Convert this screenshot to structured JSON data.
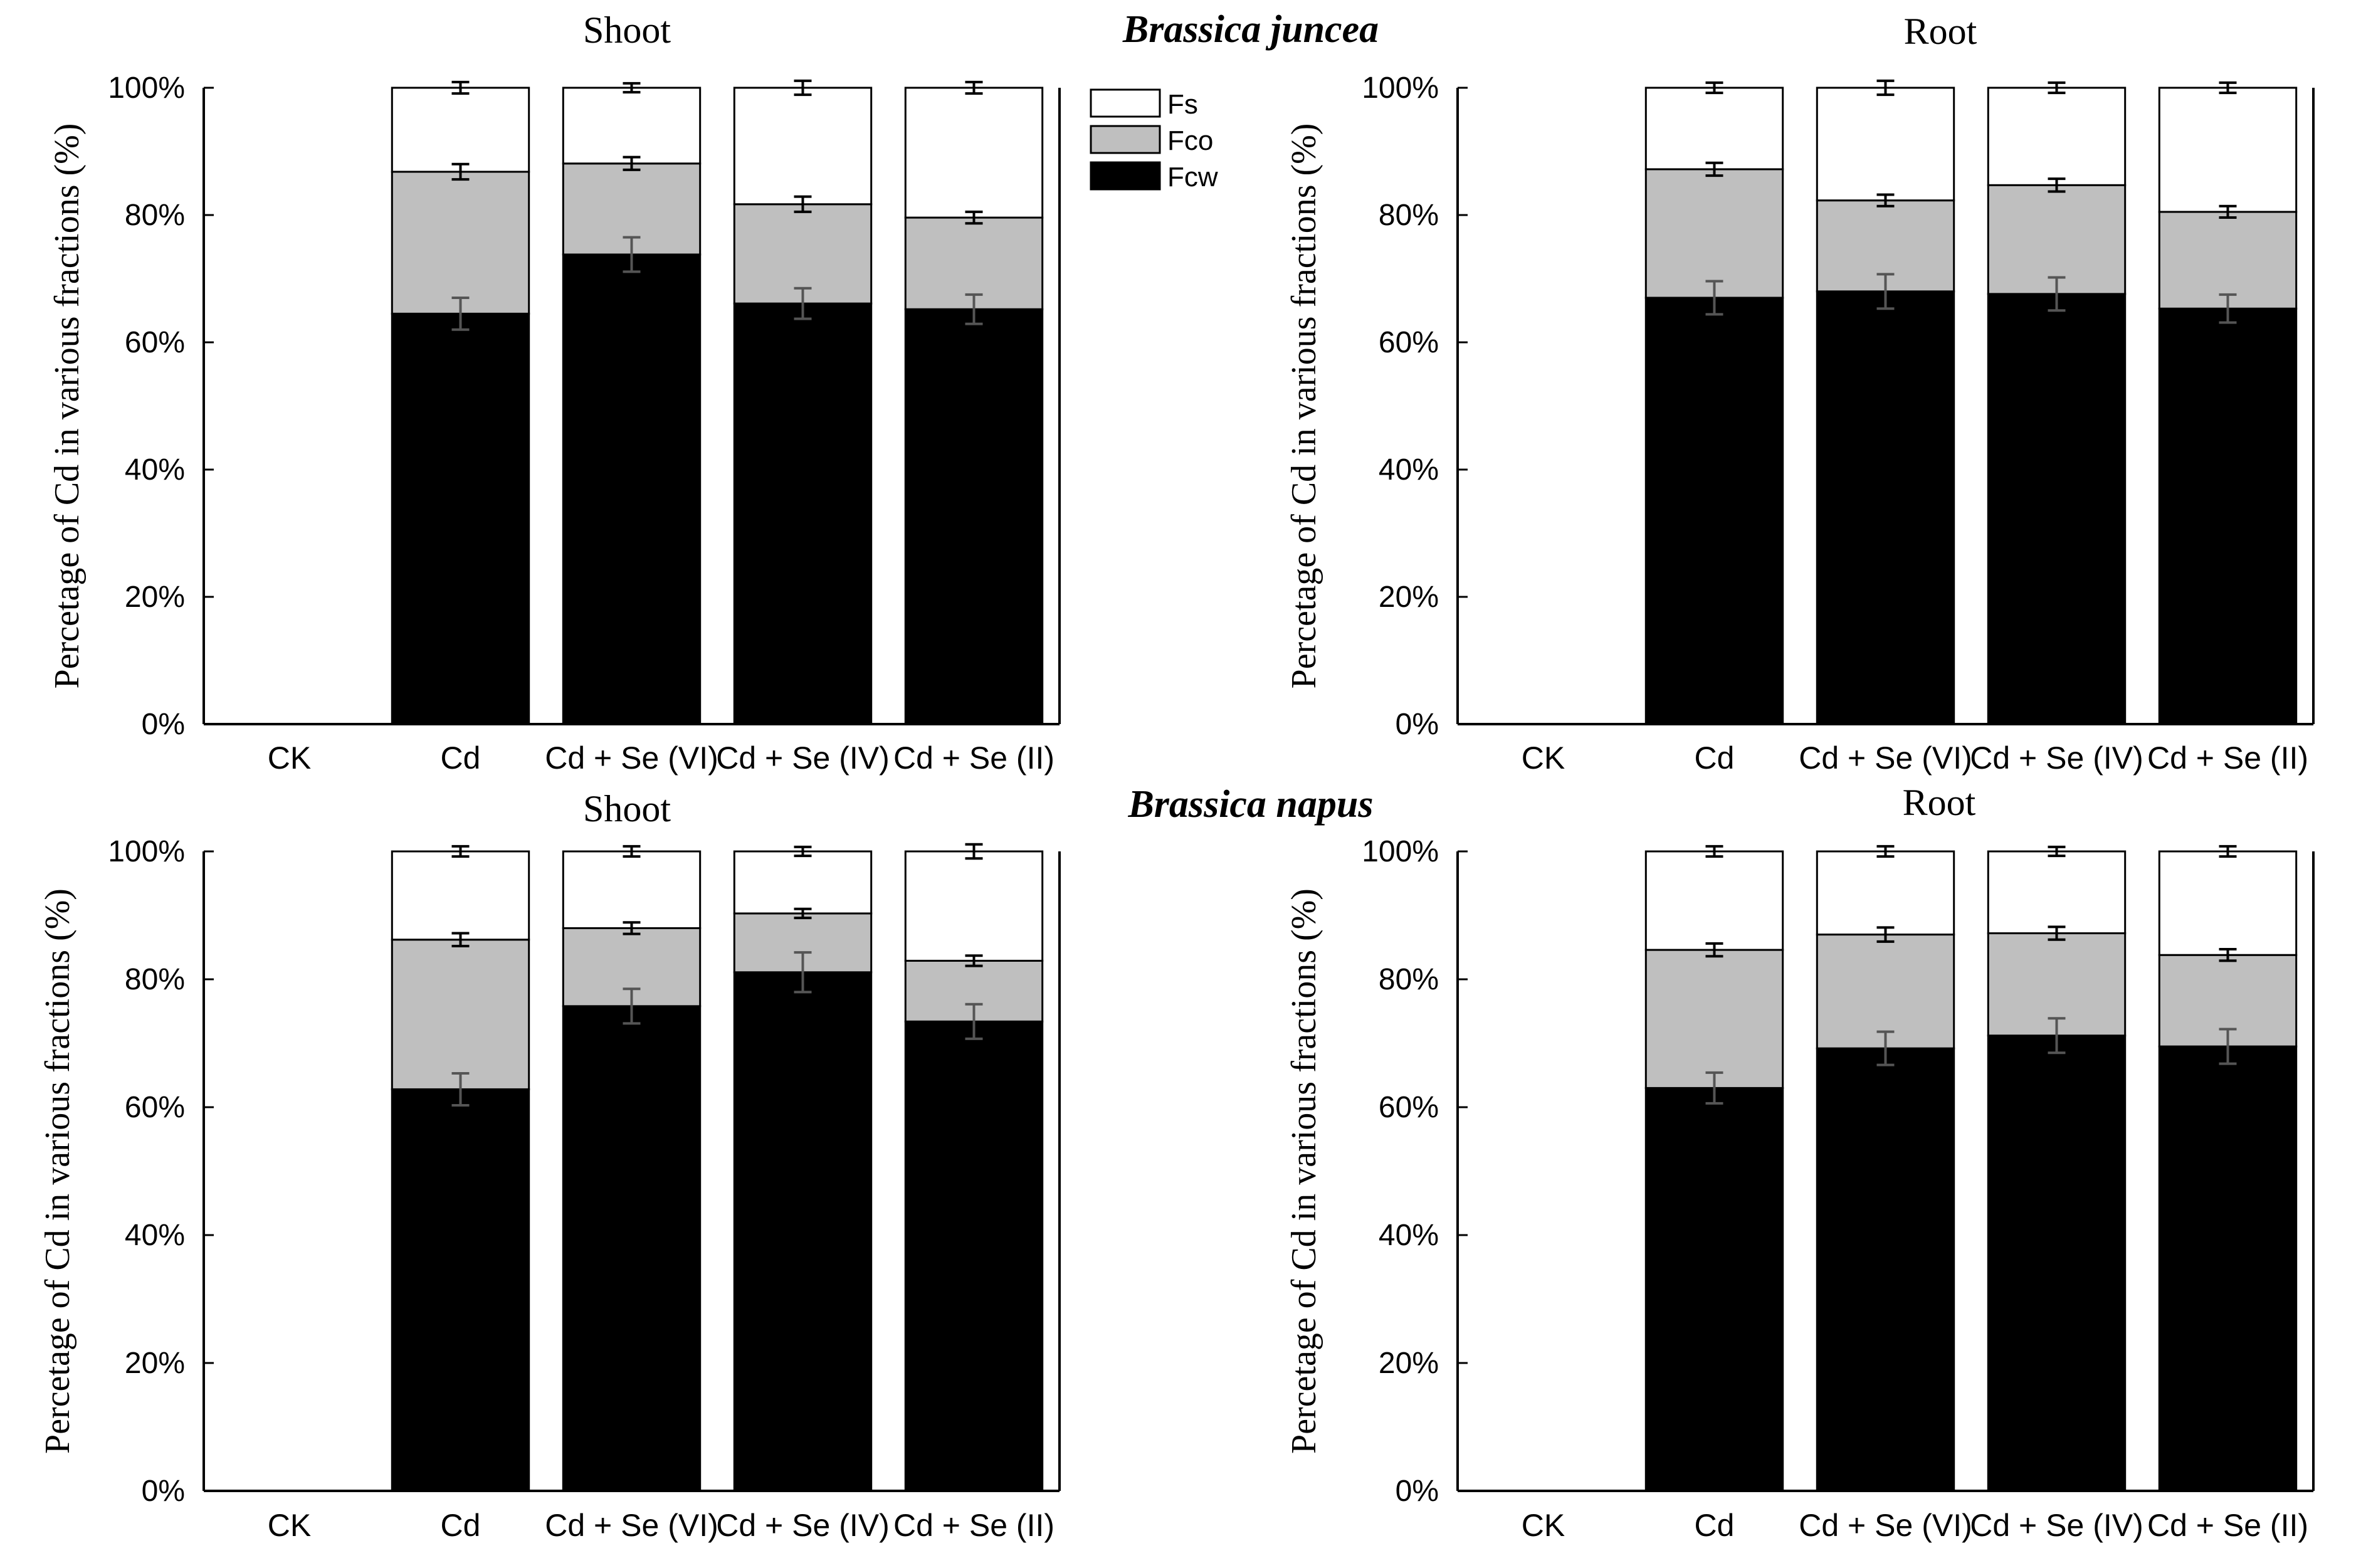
{
  "figure": {
    "species_top": "Brassica juncea",
    "species_bottom": "Brassica napus"
  },
  "legend": {
    "items": [
      {
        "name": "Fs",
        "color": "#ffffff"
      },
      {
        "name": "Fco",
        "color": "#bfbfbf"
      },
      {
        "name": "Fcw",
        "color": "#000000"
      }
    ]
  },
  "chart_data": [
    {
      "type": "bar",
      "stacked": true,
      "title": "Shoot",
      "species": "Brassica juncea",
      "xlabel": "",
      "ylabel": "Percetage of Cd in various fractions (%)",
      "ylim": [
        0,
        100
      ],
      "yticks": [
        "0%",
        "20%",
        "40%",
        "60%",
        "80%",
        "100%"
      ],
      "categories": [
        "CK",
        "Cd",
        "Cd + Se (VI)",
        "Cd + Se (IV)",
        "Cd + Se (II)"
      ],
      "series": [
        {
          "name": "Fcw",
          "values": [
            null,
            64.5,
            73.8,
            66.1,
            65.2
          ],
          "errors": [
            null,
            2.5,
            2.7,
            2.4,
            2.3
          ]
        },
        {
          "name": "Fco",
          "values": [
            null,
            22.3,
            14.3,
            15.6,
            14.4
          ],
          "errors": [
            null,
            1.2,
            1.0,
            1.2,
            0.9
          ]
        },
        {
          "name": "Fs",
          "values": [
            null,
            13.2,
            11.9,
            18.3,
            20.4
          ],
          "errors": [
            null,
            0.9,
            0.7,
            1.1,
            0.9
          ]
        }
      ]
    },
    {
      "type": "bar",
      "stacked": true,
      "title": "Root",
      "species": "Brassica juncea",
      "xlabel": "",
      "ylabel": "Percetage of Cd in various fractions (%)",
      "ylim": [
        0,
        100
      ],
      "yticks": [
        "0%",
        "20%",
        "40%",
        "60%",
        "80%",
        "100%"
      ],
      "categories": [
        "CK",
        "Cd",
        "Cd + Se (VI)",
        "Cd + Se (IV)",
        "Cd + Se (II)"
      ],
      "series": [
        {
          "name": "Fcw",
          "values": [
            null,
            67.0,
            68.0,
            67.6,
            65.3
          ],
          "errors": [
            null,
            2.6,
            2.7,
            2.6,
            2.2
          ]
        },
        {
          "name": "Fco",
          "values": [
            null,
            20.2,
            14.3,
            17.1,
            15.2
          ],
          "errors": [
            null,
            1.0,
            0.9,
            1.0,
            0.9
          ]
        },
        {
          "name": "Fs",
          "values": [
            null,
            12.8,
            17.7,
            15.3,
            19.5
          ],
          "errors": [
            null,
            0.8,
            1.1,
            0.8,
            0.8
          ]
        }
      ]
    },
    {
      "type": "bar",
      "stacked": true,
      "title": "Shoot",
      "species": "Brassica napus",
      "xlabel": "",
      "ylabel": "Percetage of Cd in various fractions (%)",
      "ylim": [
        0,
        100
      ],
      "yticks": [
        "0%",
        "20%",
        "40%",
        "60%",
        "80%",
        "100%"
      ],
      "categories": [
        "CK",
        "Cd",
        "Cd + Se (VI)",
        "Cd + Se (IV)",
        "Cd + Se (II)"
      ],
      "series": [
        {
          "name": "Fcw",
          "values": [
            null,
            62.8,
            75.8,
            81.1,
            73.4
          ],
          "errors": [
            null,
            2.5,
            2.7,
            3.1,
            2.7
          ]
        },
        {
          "name": "Fco",
          "values": [
            null,
            23.4,
            12.2,
            9.2,
            9.5
          ],
          "errors": [
            null,
            1.0,
            0.9,
            0.7,
            0.8
          ]
        },
        {
          "name": "Fs",
          "values": [
            null,
            13.8,
            12.0,
            9.7,
            17.1
          ],
          "errors": [
            null,
            0.8,
            0.8,
            0.7,
            1.1
          ]
        }
      ]
    },
    {
      "type": "bar",
      "stacked": true,
      "title": "Root",
      "species": "Brassica napus",
      "xlabel": "",
      "ylabel": "Percetage of Cd in various fractions (%)",
      "ylim": [
        0,
        100
      ],
      "yticks": [
        "0%",
        "20%",
        "40%",
        "60%",
        "80%",
        "100%"
      ],
      "categories": [
        "CK",
        "Cd",
        "Cd + Se (VI)",
        "Cd + Se (IV)",
        "Cd + Se (II)"
      ],
      "series": [
        {
          "name": "Fcw",
          "values": [
            null,
            63.0,
            69.2,
            71.2,
            69.5
          ],
          "errors": [
            null,
            2.4,
            2.6,
            2.7,
            2.7
          ]
        },
        {
          "name": "Fco",
          "values": [
            null,
            21.6,
            17.8,
            16.0,
            14.3
          ],
          "errors": [
            null,
            1.0,
            1.1,
            1.0,
            0.9
          ]
        },
        {
          "name": "Fs",
          "values": [
            null,
            15.4,
            13.0,
            12.8,
            16.2
          ],
          "errors": [
            null,
            0.8,
            0.8,
            0.7,
            0.8
          ]
        }
      ]
    }
  ]
}
